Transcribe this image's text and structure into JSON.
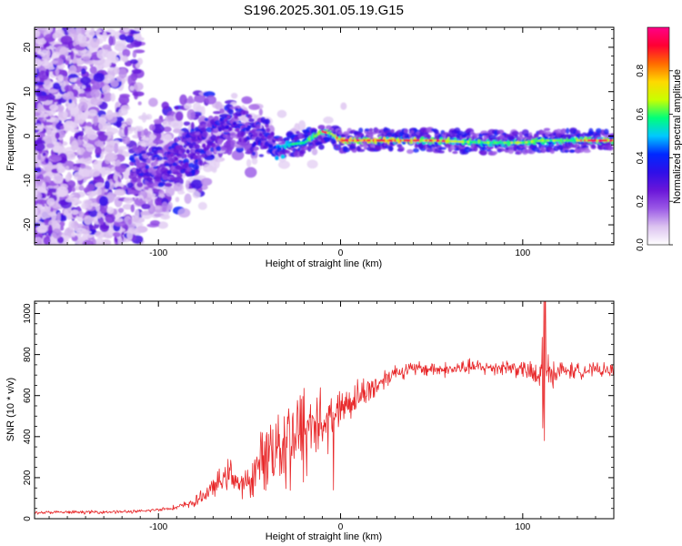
{
  "title": "S196.2025.301.05.19.G15",
  "colors": {
    "snr_line": "#e8282a",
    "axis": "#000000"
  },
  "chart_data": [
    {
      "type": "heatmap",
      "xlabel": "Height of straight line (km)",
      "ylabel": "Frequency (Hz)",
      "xlim": [
        -168,
        150
      ],
      "ylim": [
        -24.5,
        24.5
      ],
      "xticks": [
        -100,
        0,
        100
      ],
      "yticks": [
        -20,
        -10,
        0,
        10,
        20
      ],
      "colorbar": {
        "label": "Normalized spectral amplitude",
        "range": [
          0,
          1
        ],
        "ticks": [
          "0.0",
          "0.2",
          "0.4",
          "0.6",
          "0.8"
        ],
        "colors": [
          "#ffffff",
          "#dcc3f0",
          "#9b59e6",
          "#6a16d9",
          "#2f0fe8",
          "#0028ff",
          "#00c8ff",
          "#00ff7a",
          "#c8ff00",
          "#ffd800",
          "#ff6a00",
          "#ff0033",
          "#ff0088"
        ]
      },
      "ridge": {
        "x": [
          -100,
          -90,
          -80,
          -70,
          -60,
          -50,
          -40,
          -35,
          -30,
          -20,
          -10,
          -5,
          0,
          10,
          50,
          80,
          100,
          110,
          150
        ],
        "frequency": [
          -7,
          -5,
          -3,
          0.5,
          2.5,
          0.5,
          -1,
          -2.5,
          -2,
          -1.5,
          1,
          0.5,
          -1,
          -1,
          -1,
          -1.5,
          -1.5,
          -1,
          -1
        ],
        "amplitude": [
          0.25,
          0.3,
          0.35,
          0.45,
          0.35,
          0.4,
          0.35,
          0.55,
          0.6,
          0.7,
          0.8,
          0.7,
          0.9,
          0.9,
          0.8,
          0.7,
          0.75,
          0.7,
          0.8
        ]
      }
    },
    {
      "type": "line",
      "xlabel": "Height of straight line (km)",
      "ylabel": "SNR (10 * v/v)",
      "xlim": [
        -168,
        150
      ],
      "ylim": [
        0,
        1060
      ],
      "xticks": [
        -100,
        0,
        100
      ],
      "yticks": [
        0,
        200,
        400,
        600,
        800,
        1000
      ],
      "series": [
        {
          "name": "SNR",
          "x": [
            -168,
            -140,
            -110,
            -100,
            -90,
            -80,
            -70,
            -65,
            -60,
            -55,
            -50,
            -45,
            -40,
            -35,
            -30,
            -25,
            -22,
            -20,
            -15,
            -12,
            -10,
            -5,
            0,
            10,
            20,
            25,
            30,
            40,
            50,
            60,
            70,
            80,
            90,
            100,
            105,
            108,
            110,
            111,
            112,
            113,
            115,
            120,
            130,
            140,
            150
          ],
          "values": [
            30,
            32,
            35,
            45,
            55,
            80,
            150,
            190,
            230,
            150,
            180,
            260,
            330,
            370,
            380,
            420,
            380,
            430,
            470,
            500,
            430,
            490,
            540,
            600,
            650,
            690,
            715,
            730,
            730,
            725,
            740,
            735,
            740,
            730,
            710,
            680,
            700,
            720,
            740,
            700,
            710,
            720,
            720,
            725,
            720
          ],
          "amplitude": [
            10,
            10,
            10,
            10,
            15,
            30,
            60,
            80,
            90,
            70,
            100,
            150,
            220,
            250,
            300,
            330,
            320,
            340,
            330,
            260,
            200,
            150,
            120,
            100,
            80,
            60,
            50,
            45,
            45,
            45,
            45,
            45,
            50,
            55,
            60,
            130,
            180,
            380,
            330,
            180,
            90,
            60,
            45,
            40,
            40
          ]
        }
      ]
    }
  ]
}
